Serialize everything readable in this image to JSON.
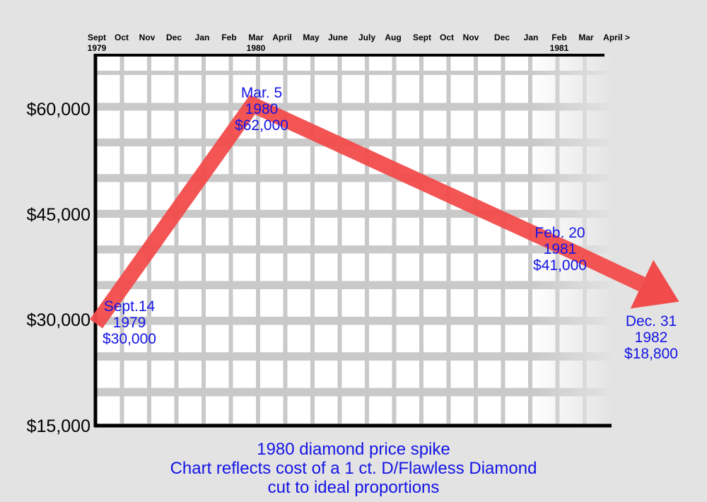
{
  "chart_data": {
    "type": "line",
    "title": "1980 diamond price spike",
    "subtitle_lines": [
      "Chart reflects cost of a 1 ct. D/Flawless Diamond",
      "cut to ideal proportions"
    ],
    "x_tick_labels": [
      {
        "label": "Sept",
        "sub": "1979"
      },
      {
        "label": "Oct",
        "sub": ""
      },
      {
        "label": "Nov",
        "sub": ""
      },
      {
        "label": "Dec",
        "sub": ""
      },
      {
        "label": "Jan",
        "sub": ""
      },
      {
        "label": "Feb",
        "sub": ""
      },
      {
        "label": "Mar",
        "sub": "1980"
      },
      {
        "label": "April",
        "sub": ""
      },
      {
        "label": "May",
        "sub": ""
      },
      {
        "label": "June",
        "sub": ""
      },
      {
        "label": "July",
        "sub": ""
      },
      {
        "label": "Aug",
        "sub": ""
      },
      {
        "label": "Sept",
        "sub": ""
      },
      {
        "label": "Oct",
        "sub": ""
      },
      {
        "label": "Nov",
        "sub": ""
      },
      {
        "label": "Dec",
        "sub": ""
      },
      {
        "label": "Jan",
        "sub": ""
      },
      {
        "label": "Feb",
        "sub": "1981"
      },
      {
        "label": "Mar",
        "sub": ""
      },
      {
        "label": "April >",
        "sub": ""
      }
    ],
    "y_ticks": [
      {
        "value": 60000,
        "label": "$60,000"
      },
      {
        "value": 45000,
        "label": "$45,000"
      },
      {
        "value": 30000,
        "label": "$30,000"
      },
      {
        "value": 15000,
        "label": "$15,000"
      }
    ],
    "ylim": [
      15000,
      67000
    ],
    "grid": true,
    "series": [
      {
        "points": [
          {
            "x": "1979-09-14",
            "y": 30000
          },
          {
            "x": "1980-03-05",
            "y": 62000
          },
          {
            "x": "1981-02-20",
            "y": 41000
          },
          {
            "x": "1982-12-31",
            "y": 18800
          }
        ],
        "color": "#f24b4b"
      }
    ],
    "annotations": [
      {
        "lines": [
          "Sept.14",
          "1979",
          "$30,000"
        ]
      },
      {
        "lines": [
          "Mar. 5",
          "1980",
          "$62,000"
        ]
      },
      {
        "lines": [
          "Feb. 20",
          "1981",
          "$41,000"
        ]
      },
      {
        "lines": [
          "Dec. 31",
          "1982",
          "$18,800"
        ]
      }
    ],
    "colors": {
      "background": "#e3e3e3",
      "grid": "#c9c9c9",
      "axis": "#000000",
      "line": "#f24b4b",
      "annotation_text": "#1414e6"
    }
  }
}
